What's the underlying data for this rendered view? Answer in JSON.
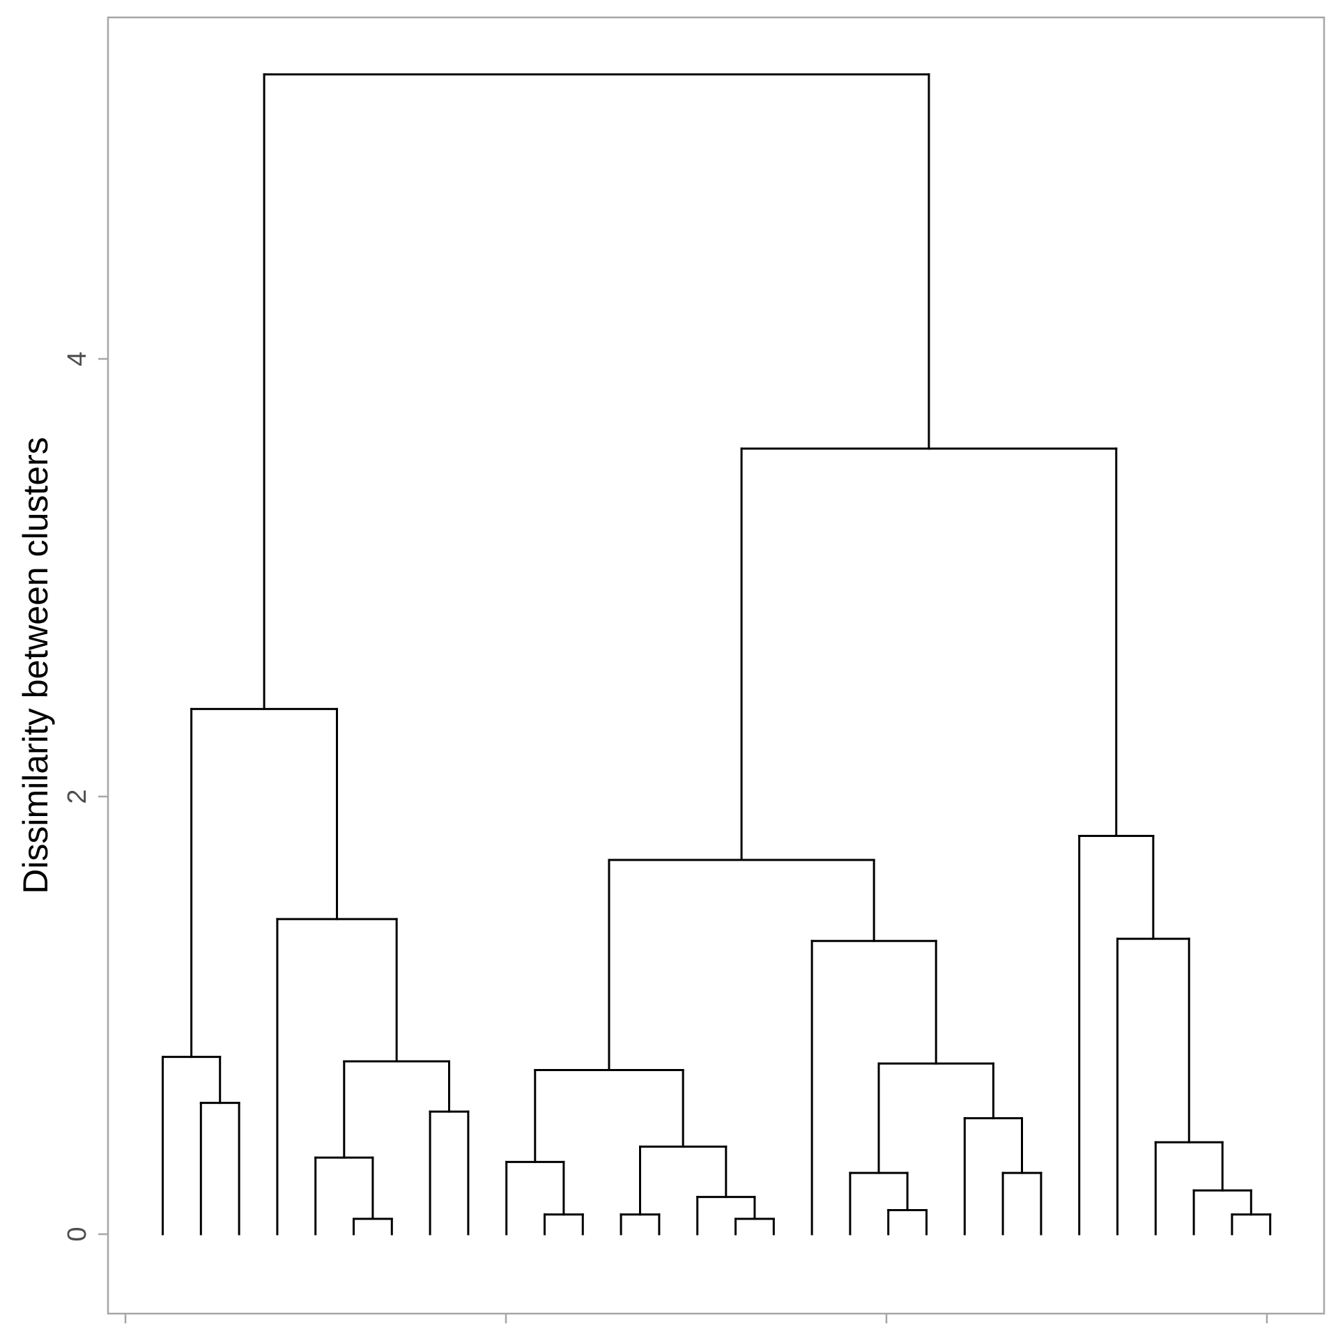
{
  "chart_data": {
    "type": "dendrogram",
    "title": "",
    "xlabel": "",
    "ylabel": "Dissimilarity between clusters",
    "ylim": [
      -0.25,
      5.76
    ],
    "y_ticks": [
      0,
      2,
      4
    ],
    "y_tick_labels": [
      "0",
      "2",
      "4"
    ],
    "x_ticks": [
      0,
      10,
      20,
      30
    ],
    "grid": false,
    "legend": "none",
    "line_color": "#000000",
    "frame_color": "#a6a6a6",
    "leaves": [
      "1",
      "2",
      "3",
      "4",
      "5",
      "6",
      "7",
      "8",
      "9",
      "10",
      "11",
      "12",
      "13",
      "14",
      "15",
      "16",
      "17",
      "18",
      "19",
      "20",
      "21",
      "22",
      "23",
      "24",
      "25",
      "26",
      "27",
      "28",
      "29",
      "30"
    ],
    "merges": [
      {
        "left": "5",
        "right": "6",
        "height": 0.07
      },
      {
        "left": "20",
        "right": "21",
        "height": 0.07
      },
      {
        "left": "11",
        "right": "12",
        "height": 0.09
      },
      {
        "left": "14",
        "right": "15",
        "height": 0.09
      },
      {
        "left": "29",
        "right": "30",
        "height": 0.09
      },
      {
        "left": "23",
        "right": "24",
        "height": 0.11
      },
      {
        "left": "17",
        "right": "m2",
        "height": 0.17
      },
      {
        "left": "28",
        "right": "m5",
        "height": 0.2
      },
      {
        "left": "26",
        "right": "27",
        "height": 0.28
      },
      {
        "left": "22",
        "right": "m6",
        "height": 0.28
      },
      {
        "left": "4",
        "right": "m1",
        "height": 0.35
      },
      {
        "left": "10",
        "right": "m3",
        "height": 0.33
      },
      {
        "left": "16",
        "right": "m7",
        "height": 0.4
      },
      {
        "left": "27b",
        "right": "m8",
        "height": 0.42
      },
      {
        "left": "7",
        "right": "8",
        "height": 0.56
      },
      {
        "left": "25",
        "right": "m9",
        "height": 0.53
      },
      {
        "left": "2",
        "right": "3",
        "height": 0.6
      },
      {
        "left": "m13",
        "right": "m14",
        "height": 0.75
      },
      {
        "left": "m11",
        "right": "m15",
        "height": 0.79
      },
      {
        "left": "1",
        "right": "m17",
        "height": 0.81
      },
      {
        "left": "m12",
        "right": "m13b",
        "height": 0.78
      },
      {
        "left": "19",
        "right": "m18",
        "height": 1.34
      },
      {
        "left": "m16",
        "right": "m14b",
        "height": 1.35
      },
      {
        "left": "3b",
        "right": "m19",
        "height": 1.44
      },
      {
        "left": "m21",
        "right": "m22",
        "height": 1.71
      },
      {
        "left": "27c",
        "right": "m23",
        "height": 1.82
      },
      {
        "left": "m20",
        "right": "m24",
        "height": 2.4
      },
      {
        "left": "m25",
        "right": "m26",
        "height": 3.59
      },
      {
        "left": "m27",
        "right": "m28",
        "height": 5.3
      }
    ],
    "tree": {
      "height": 5.3,
      "children": [
        {
          "height": 2.4,
          "children": [
            {
              "height": 0.81,
              "children": [
                {
                  "leaf": "1"
                },
                {
                  "height": 0.6,
                  "children": [
                    {
                      "leaf": "2"
                    },
                    {
                      "leaf": "3"
                    }
                  ]
                }
              ]
            },
            {
              "height": 1.44,
              "children": [
                {
                  "leaf": "4"
                },
                {
                  "height": 0.79,
                  "children": [
                    {
                      "height": 0.35,
                      "children": [
                        {
                          "leaf": "5"
                        },
                        {
                          "height": 0.07,
                          "children": [
                            {
                              "leaf": "6"
                            },
                            {
                              "leaf": "7"
                            }
                          ]
                        }
                      ]
                    },
                    {
                      "height": 0.56,
                      "children": [
                        {
                          "leaf": "8"
                        },
                        {
                          "leaf": "9"
                        }
                      ]
                    }
                  ]
                }
              ]
            }
          ]
        },
        {
          "height": 3.59,
          "children": [
            {
              "height": 1.71,
              "children": [
                {
                  "height": 0.75,
                  "children": [
                    {
                      "height": 0.33,
                      "children": [
                        {
                          "leaf": "10"
                        },
                        {
                          "height": 0.09,
                          "children": [
                            {
                              "leaf": "11"
                            },
                            {
                              "leaf": "12"
                            }
                          ]
                        }
                      ]
                    },
                    {
                      "height": 0.4,
                      "children": [
                        {
                          "height": 0.09,
                          "children": [
                            {
                              "leaf": "13"
                            },
                            {
                              "leaf": "14"
                            }
                          ]
                        },
                        {
                          "height": 0.17,
                          "children": [
                            {
                              "leaf": "15"
                            },
                            {
                              "height": 0.07,
                              "children": [
                                {
                                  "leaf": "16"
                                },
                                {
                                  "leaf": "17"
                                }
                              ]
                            }
                          ]
                        }
                      ]
                    }
                  ]
                },
                {
                  "height": 1.34,
                  "children": [
                    {
                      "leaf": "18"
                    },
                    {
                      "height": 0.78,
                      "children": [
                        {
                          "height": 0.28,
                          "children": [
                            {
                              "leaf": "19"
                            },
                            {
                              "height": 0.11,
                              "children": [
                                {
                                  "leaf": "20"
                                },
                                {
                                  "leaf": "21"
                                }
                              ]
                            }
                          ]
                        },
                        {
                          "height": 0.53,
                          "children": [
                            {
                              "leaf": "22"
                            },
                            {
                              "height": 0.28,
                              "children": [
                                {
                                  "leaf": "23"
                                },
                                {
                                  "leaf": "24"
                                }
                              ]
                            }
                          ]
                        }
                      ]
                    }
                  ]
                }
              ]
            },
            {
              "height": 1.82,
              "children": [
                {
                  "leaf": "25"
                },
                {
                  "height": 1.35,
                  "children": [
                    {
                      "leaf": "26"
                    },
                    {
                      "height": 0.42,
                      "children": [
                        {
                          "leaf": "27"
                        },
                        {
                          "height": 0.2,
                          "children": [
                            {
                              "leaf": "28"
                            },
                            {
                              "height": 0.09,
                              "children": [
                                {
                                  "leaf": "29"
                                },
                                {
                                  "leaf": "30"
                                }
                              ]
                            }
                          ]
                        }
                      ]
                    }
                  ]
                }
              ]
            }
          ]
        }
      ]
    }
  }
}
